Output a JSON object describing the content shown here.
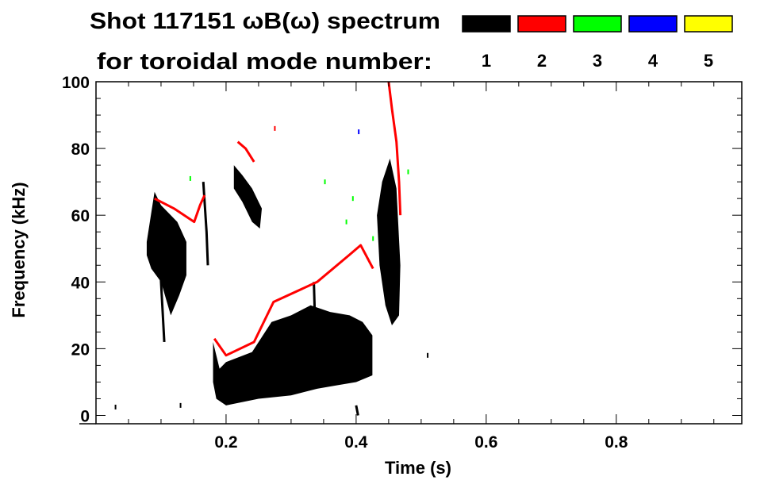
{
  "chart_data": {
    "type": "heatmap",
    "title_line1": "Shot 117151 ωB(ω) spectrum",
    "title_line2": "for toroidal mode number:",
    "xlabel": "Time (s)",
    "ylabel": "Frequency (kHz)",
    "xlim": [
      0.0,
      0.993
    ],
    "ylim": [
      -2.5,
      100
    ],
    "xticks": [
      0.2,
      0.4,
      0.6,
      0.8
    ],
    "xtick_labels": [
      "0.2",
      "0.4",
      "0.6",
      "0.8"
    ],
    "yticks": [
      0,
      20,
      40,
      60,
      80,
      100
    ],
    "ytick_labels": [
      "0",
      "20",
      "40",
      "60",
      "80",
      "100"
    ],
    "x_minor_step": 0.05,
    "y_minor_step": 5,
    "legend": [
      {
        "label": "1",
        "color": "#000000"
      },
      {
        "label": "2",
        "color": "#ff0000"
      },
      {
        "label": "3",
        "color": "#00ff00"
      },
      {
        "label": "4",
        "color": "#0000ff"
      },
      {
        "label": "5",
        "color": "#ffff00"
      }
    ],
    "legend_placement": "top-right",
    "series": [
      {
        "name": "n=1",
        "color": "#000000",
        "regions": [
          [
            [
              0.078,
              52
            ],
            [
              0.09,
              67
            ],
            [
              0.1,
              63
            ],
            [
              0.125,
              58
            ],
            [
              0.139,
              52
            ],
            [
              0.139,
              42
            ],
            [
              0.128,
              36
            ],
            [
              0.115,
              30
            ],
            [
              0.1,
              40
            ],
            [
              0.085,
              44
            ],
            [
              0.078,
              48
            ]
          ],
          [
            [
              0.18,
              22
            ],
            [
              0.19,
              14
            ],
            [
              0.2,
              16
            ],
            [
              0.24,
              19
            ],
            [
              0.27,
              28
            ],
            [
              0.3,
              30
            ],
            [
              0.33,
              33
            ],
            [
              0.36,
              31
            ],
            [
              0.39,
              30
            ],
            [
              0.41,
              28
            ],
            [
              0.425,
              24
            ],
            [
              0.425,
              12
            ],
            [
              0.4,
              10
            ],
            [
              0.37,
              9
            ],
            [
              0.34,
              8
            ],
            [
              0.3,
              6
            ],
            [
              0.25,
              5
            ],
            [
              0.2,
              3
            ],
            [
              0.185,
              5
            ],
            [
              0.18,
              10
            ]
          ],
          [
            [
              0.212,
              75
            ],
            [
              0.225,
              72
            ],
            [
              0.24,
              68
            ],
            [
              0.255,
              62
            ],
            [
              0.252,
              56
            ],
            [
              0.24,
              58
            ],
            [
              0.225,
              64
            ],
            [
              0.212,
              68
            ]
          ],
          [
            [
              0.432,
              60
            ],
            [
              0.44,
              70
            ],
            [
              0.452,
              77
            ],
            [
              0.462,
              68
            ],
            [
              0.468,
              45
            ],
            [
              0.466,
              30
            ],
            [
              0.455,
              27
            ],
            [
              0.445,
              33
            ],
            [
              0.436,
              45
            ]
          ]
        ],
        "traces": [
          [
            [
              0.095,
              60
            ],
            [
              0.1,
              40
            ],
            [
              0.105,
              22
            ]
          ],
          [
            [
              0.11,
              55
            ],
            [
              0.112,
              35
            ]
          ],
          [
            [
              0.165,
              70
            ],
            [
              0.17,
              55
            ],
            [
              0.172,
              45
            ]
          ],
          [
            [
              0.335,
              40
            ],
            [
              0.338,
              20
            ]
          ],
          [
            [
              0.4,
              3
            ],
            [
              0.403,
              0
            ]
          ]
        ],
        "points": [
          [
            0.03,
            2.5
          ],
          [
            0.13,
            3
          ],
          [
            0.51,
            18
          ]
        ]
      },
      {
        "name": "n=2",
        "color": "#ff0000",
        "traces": [
          [
            [
              0.09,
              65
            ],
            [
              0.12,
              62
            ],
            [
              0.151,
              58
            ],
            [
              0.16,
              63
            ],
            [
              0.167,
              66
            ]
          ],
          [
            [
              0.182,
              23
            ],
            [
              0.2,
              18
            ],
            [
              0.243,
              22
            ],
            [
              0.273,
              34
            ],
            [
              0.34,
              40
            ],
            [
              0.389,
              48
            ],
            [
              0.407,
              51
            ],
            [
              0.426,
              44
            ]
          ],
          [
            [
              0.218,
              82
            ],
            [
              0.23,
              80
            ],
            [
              0.243,
              76
            ]
          ],
          [
            [
              0.45,
              100
            ],
            [
              0.455,
              92
            ],
            [
              0.462,
              82
            ],
            [
              0.466,
              70
            ],
            [
              0.468,
              60
            ]
          ]
        ],
        "points": [
          [
            0.275,
            86
          ]
        ]
      },
      {
        "name": "n=3",
        "color": "#00ff00",
        "traces": [],
        "points": [
          [
            0.145,
            71
          ],
          [
            0.352,
            70
          ],
          [
            0.395,
            65
          ],
          [
            0.426,
            53
          ],
          [
            0.48,
            73
          ],
          [
            0.385,
            58
          ]
        ]
      },
      {
        "name": "n=4",
        "color": "#0000ff",
        "traces": [],
        "points": [
          [
            0.404,
            85
          ]
        ]
      },
      {
        "name": "n=5",
        "color": "#ffff00",
        "traces": [],
        "points": []
      }
    ]
  }
}
